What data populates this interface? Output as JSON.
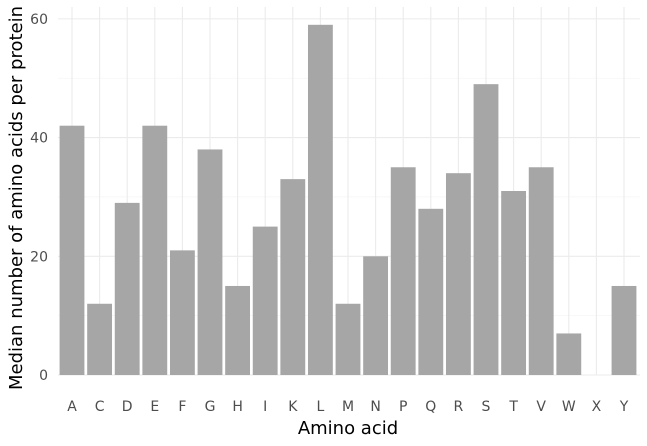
{
  "chart_data": {
    "type": "bar",
    "xlabel": "Amino acid",
    "ylabel": "Median number of amino acids per protein",
    "categories": [
      "A",
      "C",
      "D",
      "E",
      "F",
      "G",
      "H",
      "I",
      "K",
      "L",
      "M",
      "N",
      "P",
      "Q",
      "R",
      "S",
      "T",
      "V",
      "W",
      "X",
      "Y"
    ],
    "values": [
      42,
      12,
      29,
      42,
      21,
      38,
      15,
      25,
      33,
      59,
      12,
      20,
      35,
      28,
      34,
      49,
      31,
      35,
      7,
      0,
      15
    ],
    "ylim": [
      0,
      62
    ],
    "yticks": [
      0,
      20,
      40,
      60
    ],
    "grid": true,
    "legend": "none",
    "bar_color": "#a6a6a6"
  }
}
